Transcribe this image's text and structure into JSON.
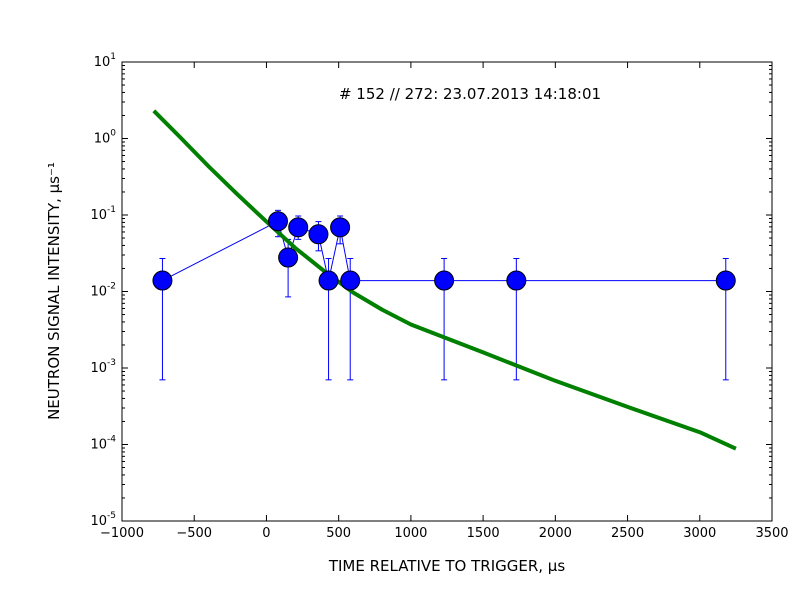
{
  "chart_data": {
    "type": "scatter",
    "annotation": "# 152 // 272: 23.07.2013 14:18:01",
    "xlabel": "TIME RELATIVE TO TRIGGER, μs",
    "ylabel": "NEUTRON SIGNAL INTENSITY, μs⁻¹",
    "xlim": [
      -1000,
      3500
    ],
    "ylim": [
      1e-05,
      10
    ],
    "yscale": "log",
    "grid": false,
    "x_ticks": [
      -1000,
      -500,
      0,
      500,
      1000,
      1500,
      2000,
      2500,
      3000,
      3500
    ],
    "x_tick_labels": [
      "−1000",
      "−500",
      "0",
      "500",
      "1000",
      "1500",
      "2000",
      "2500",
      "3000",
      "3500"
    ],
    "y_ticks": [
      {
        "value": 1e-05,
        "base": "10",
        "exp": "-5"
      },
      {
        "value": 0.0001,
        "base": "10",
        "exp": "-4"
      },
      {
        "value": 0.001,
        "base": "10",
        "exp": "-3"
      },
      {
        "value": 0.01,
        "base": "10",
        "exp": "-2"
      },
      {
        "value": 0.1,
        "base": "10",
        "exp": "-1"
      },
      {
        "value": 1,
        "base": "10",
        "exp": "0"
      },
      {
        "value": 10,
        "base": "10",
        "exp": "1"
      }
    ],
    "series": [
      {
        "style": "markers-with-errorbars",
        "color": "#0000ff",
        "x": [
          -720,
          80,
          150,
          220,
          360,
          430,
          510,
          580,
          1230,
          1730,
          3180
        ],
        "y": [
          0.0139,
          0.083,
          0.0278,
          0.069,
          0.056,
          0.0139,
          0.069,
          0.0139,
          0.0139,
          0.0139,
          0.0139
        ],
        "y_err_low": [
          0.0007,
          0.052,
          0.0085,
          0.048,
          0.034,
          0.0007,
          0.042,
          0.0007,
          0.0007,
          0.0007,
          0.0007
        ],
        "y_err_high": [
          0.027,
          0.115,
          0.048,
          0.097,
          0.082,
          0.027,
          0.097,
          0.027,
          0.027,
          0.027,
          0.027
        ]
      },
      {
        "style": "line",
        "color": "#008000",
        "x": [
          -780,
          -600,
          -400,
          -200,
          0,
          200,
          400,
          600,
          800,
          1000,
          1500,
          2000,
          2500,
          3000,
          3250
        ],
        "y": [
          2.3,
          1.05,
          0.43,
          0.185,
          0.082,
          0.037,
          0.0185,
          0.0097,
          0.0058,
          0.0037,
          0.0016,
          0.00068,
          0.00031,
          0.000145,
          8.8e-05
        ]
      }
    ]
  }
}
